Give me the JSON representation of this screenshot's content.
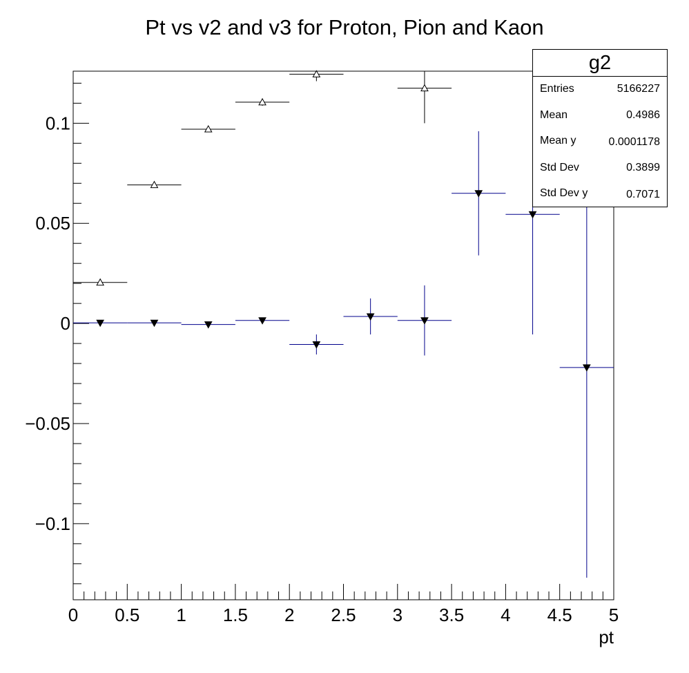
{
  "chart_data": {
    "type": "scatter",
    "title": "Pt vs v2 and v3 for Proton, Pion and Kaon",
    "xlabel": "pt",
    "ylabel": "",
    "xlim": [
      0,
      5
    ],
    "ylim": [
      -0.138,
      0.126
    ],
    "x_ticks": [
      "0",
      "0.5",
      "1",
      "1.5",
      "2",
      "2.5",
      "3",
      "3.5",
      "4",
      "4.5",
      "5"
    ],
    "y_ticks": [
      {
        "value": 0.1,
        "label": "0.1"
      },
      {
        "value": 0.05,
        "label": "0.05"
      },
      {
        "value": 0,
        "label": "0"
      },
      {
        "value": -0.05,
        "label": "−0.05"
      },
      {
        "value": -0.1,
        "label": "−0.1"
      }
    ],
    "grid": false,
    "series": [
      {
        "marker": "open-triangle-up",
        "color": "#000000",
        "bar_color": "#000000",
        "x": [
          0.25,
          0.75,
          1.25,
          1.75,
          2.25,
          3.25
        ],
        "xerr": [
          0.25,
          0.25,
          0.25,
          0.25,
          0.25,
          0.25
        ],
        "y": [
          0.0205,
          0.0692,
          0.097,
          0.1105,
          0.1245,
          0.1175
        ],
        "yerr": [
          0.0006,
          0.0006,
          0.0008,
          0.0018,
          0.0035,
          0.0175
        ]
      },
      {
        "marker": "filled-triangle-down",
        "color": "#000000",
        "bar_color": "#00008b",
        "x": [
          0.25,
          0.75,
          1.25,
          1.75,
          2.25,
          2.75,
          3.25,
          3.75,
          4.25,
          4.75
        ],
        "xerr": [
          0.25,
          0.25,
          0.25,
          0.25,
          0.25,
          0.25,
          0.25,
          0.25,
          0.25,
          0.25
        ],
        "y": [
          0.0003,
          0.0003,
          -0.0005,
          0.0015,
          -0.0105,
          0.0035,
          0.0015,
          0.065,
          0.0545,
          -0.022
        ],
        "yerr": [
          0.0004,
          0.0004,
          0.0005,
          0.001,
          0.005,
          0.009,
          0.0175,
          0.031,
          0.06,
          0.105
        ]
      }
    ]
  },
  "stats_box": {
    "title": "g2",
    "rows": [
      {
        "key": "Entries",
        "value": "5166227"
      },
      {
        "key": "Mean",
        "value": "0.4986"
      },
      {
        "key": "Mean y",
        "value": "0.0001178"
      },
      {
        "key": "Std Dev",
        "value": "0.3899"
      },
      {
        "key": "Std Dev y",
        "value": "0.7071"
      }
    ]
  }
}
